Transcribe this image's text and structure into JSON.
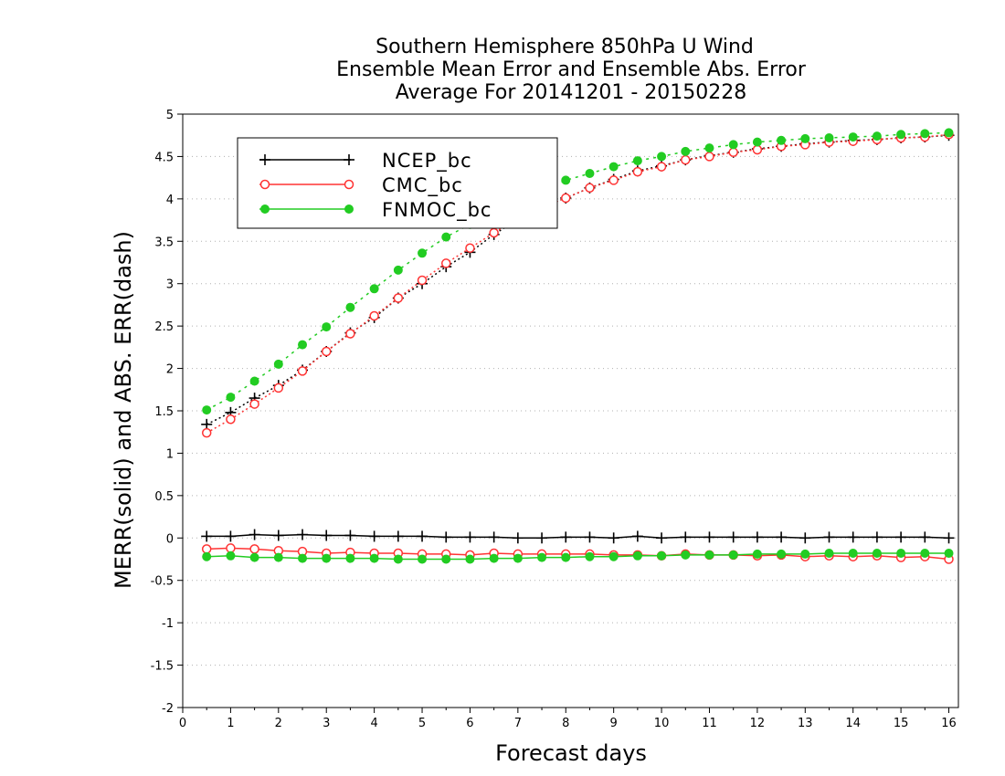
{
  "chart_data": {
    "type": "line",
    "title_lines": [
      "Southern Hemisphere 850hPa U Wind",
      "Ensemble Mean Error and Ensemble Abs. Error",
      "Average For 20141201 - 20150228"
    ],
    "xlabel": "Forecast days",
    "ylabel": "MERR(solid) and ABS. ERR(dash)",
    "xlim": [
      0,
      16.2
    ],
    "ylim": [
      -2,
      5
    ],
    "x_ticks": [
      "0",
      "1",
      "2",
      "3",
      "4",
      "5",
      "6",
      "7",
      "8",
      "9",
      "10",
      "11",
      "12",
      "13",
      "14",
      "15",
      "16"
    ],
    "y_ticks": [
      "5",
      "4.5",
      "4",
      "3.5",
      "3",
      "2.5",
      "2",
      "1.5",
      "1",
      "0.5",
      "0",
      "-0.5",
      "-1",
      "-1.5",
      "-2"
    ],
    "grid": "horizontal dotted",
    "legend_position": "top-left",
    "x": [
      0.5,
      1,
      1.5,
      2,
      2.5,
      3,
      3.5,
      4,
      4.5,
      5,
      5.5,
      6,
      6.5,
      7,
      7.5,
      8,
      8.5,
      9,
      9.5,
      10,
      10.5,
      11,
      11.5,
      12,
      12.5,
      13,
      13.5,
      14,
      14.5,
      15,
      15.5,
      16
    ],
    "series": [
      {
        "name": "NCEP_bc",
        "color": "#000000",
        "marker": "plus",
        "abs_err": [
          1.34,
          1.48,
          1.65,
          1.8,
          1.98,
          2.2,
          2.42,
          2.6,
          2.83,
          3.0,
          3.2,
          3.37,
          3.58,
          3.76,
          3.9,
          4.01,
          4.13,
          4.23,
          4.33,
          4.39,
          4.46,
          4.51,
          4.55,
          4.59,
          4.62,
          4.65,
          4.67,
          4.69,
          4.7,
          4.72,
          4.73,
          4.75
        ],
        "mean_err": [
          0.02,
          0.02,
          0.04,
          0.03,
          0.04,
          0.03,
          0.03,
          0.02,
          0.02,
          0.02,
          0.01,
          0.01,
          0.01,
          0.0,
          0.0,
          0.01,
          0.01,
          0.0,
          0.02,
          0.0,
          0.01,
          0.01,
          0.01,
          0.01,
          0.01,
          0.0,
          0.01,
          0.01,
          0.01,
          0.01,
          0.01,
          0.0
        ]
      },
      {
        "name": "CMC_bc",
        "color": "#ff3333",
        "marker": "open-circle",
        "abs_err": [
          1.24,
          1.4,
          1.58,
          1.77,
          1.97,
          2.2,
          2.41,
          2.62,
          2.83,
          3.04,
          3.24,
          3.42,
          3.6,
          3.77,
          3.9,
          4.01,
          4.13,
          4.22,
          4.32,
          4.38,
          4.46,
          4.5,
          4.55,
          4.58,
          4.62,
          4.64,
          4.67,
          4.68,
          4.7,
          4.72,
          4.73,
          4.76
        ],
        "mean_err": [
          -0.13,
          -0.12,
          -0.13,
          -0.15,
          -0.16,
          -0.18,
          -0.17,
          -0.18,
          -0.18,
          -0.19,
          -0.19,
          -0.2,
          -0.18,
          -0.19,
          -0.19,
          -0.19,
          -0.19,
          -0.2,
          -0.2,
          -0.21,
          -0.19,
          -0.2,
          -0.2,
          -0.21,
          -0.2,
          -0.22,
          -0.21,
          -0.22,
          -0.21,
          -0.23,
          -0.22,
          -0.25
        ]
      },
      {
        "name": "FNMOC_bc",
        "color": "#22cc22",
        "marker": "filled-circle",
        "abs_err": [
          1.51,
          1.66,
          1.85,
          2.05,
          2.28,
          2.49,
          2.72,
          2.94,
          3.16,
          3.36,
          3.55,
          3.7,
          3.86,
          3.98,
          4.11,
          4.22,
          4.3,
          4.38,
          4.45,
          4.5,
          4.56,
          4.6,
          4.64,
          4.67,
          4.69,
          4.71,
          4.72,
          4.73,
          4.74,
          4.76,
          4.77,
          4.78
        ],
        "mean_err": [
          -0.22,
          -0.21,
          -0.23,
          -0.23,
          -0.24,
          -0.24,
          -0.24,
          -0.24,
          -0.25,
          -0.25,
          -0.25,
          -0.25,
          -0.24,
          -0.24,
          -0.23,
          -0.23,
          -0.22,
          -0.22,
          -0.21,
          -0.21,
          -0.2,
          -0.2,
          -0.2,
          -0.19,
          -0.19,
          -0.19,
          -0.18,
          -0.18,
          -0.18,
          -0.18,
          -0.18,
          -0.18
        ]
      }
    ]
  }
}
